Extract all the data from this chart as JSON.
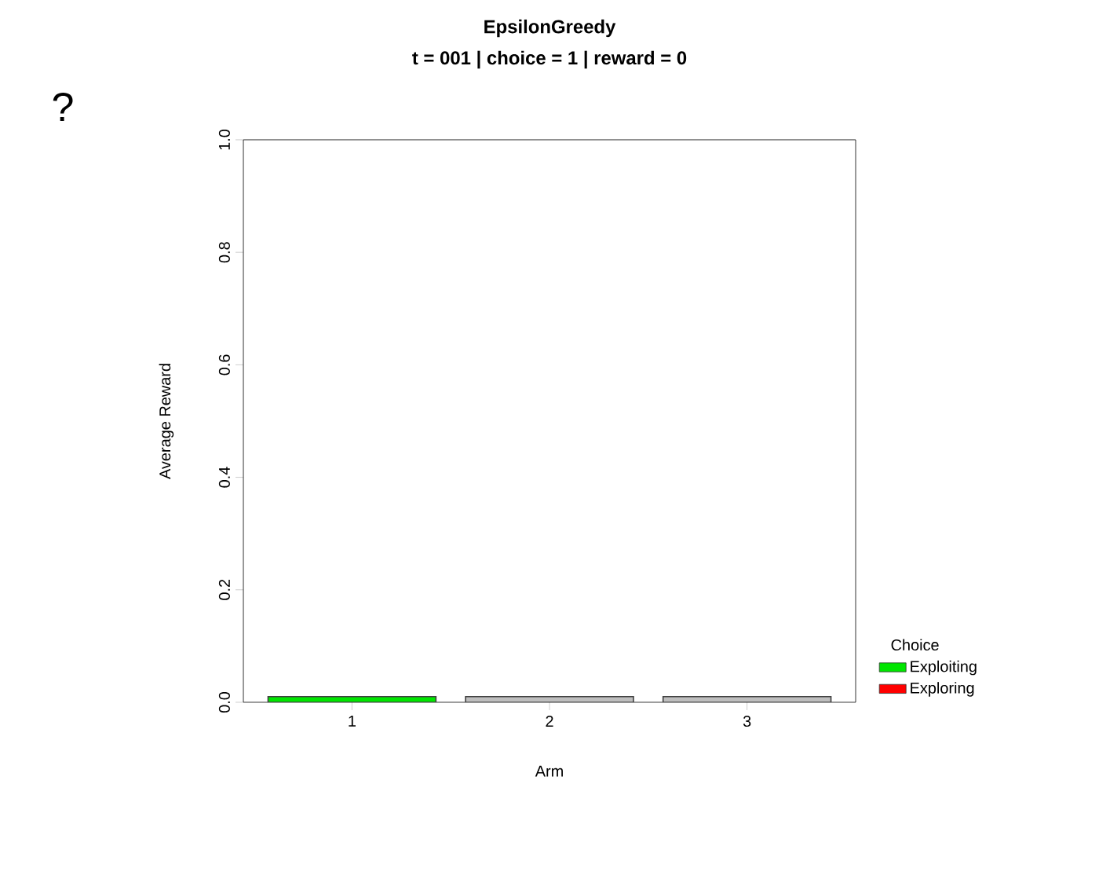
{
  "chart_data": {
    "type": "bar",
    "title": "EpsilonGreedy",
    "subtitle": "t = 001 | choice = 1 | reward = 0",
    "xlabel": "Arm",
    "ylabel": "Average Reward",
    "legend_title": "Choice",
    "annotations": [
      "?"
    ],
    "categories": [
      "1",
      "2",
      "3"
    ],
    "series": [
      {
        "name": "Exploiting",
        "color": "#00e600",
        "values": [
          0.01,
          null,
          null
        ]
      },
      {
        "name": "Exploring",
        "color": "#ff0000",
        "values": [
          null,
          null,
          null
        ]
      },
      {
        "color": "#bebebe",
        "values": [
          null,
          0.01,
          0.01
        ]
      }
    ],
    "ylim": [
      0,
      1
    ],
    "yticks": [
      {
        "value": 0,
        "label": "0.0"
      },
      0.2,
      0.4,
      0.6,
      0.8,
      {
        "value": 1,
        "label": "1.0"
      }
    ],
    "legend": "right",
    "grid": false
  }
}
